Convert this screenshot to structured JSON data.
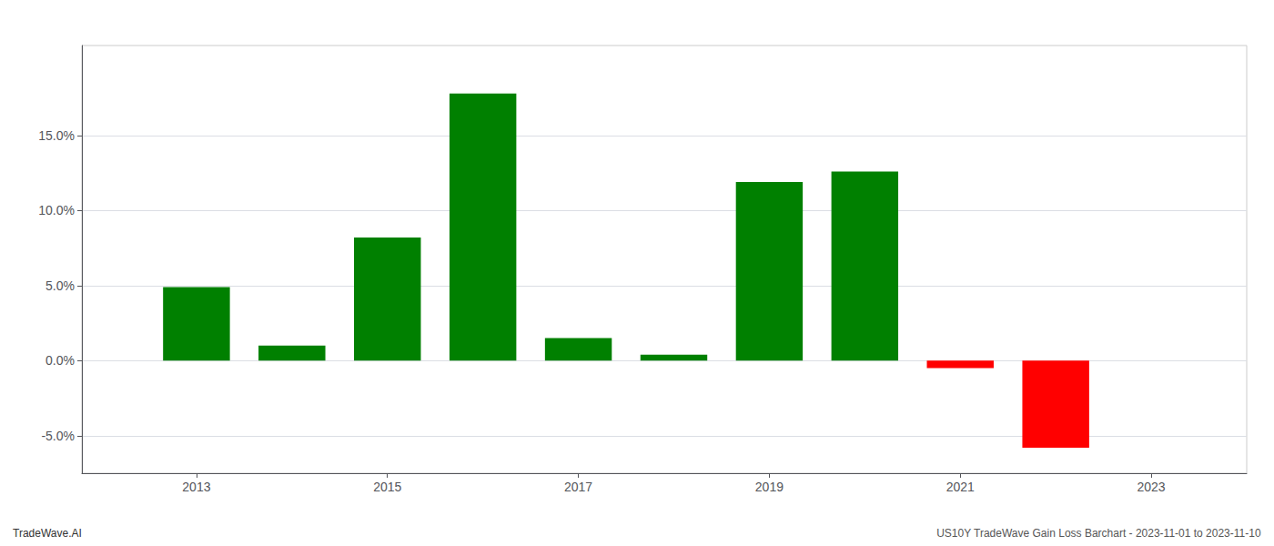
{
  "chart_data": {
    "type": "bar",
    "x": [
      2013,
      2014,
      2015,
      2016,
      2017,
      2018,
      2019,
      2020,
      2021,
      2022
    ],
    "values": [
      0.049,
      0.01,
      0.082,
      0.178,
      0.015,
      0.004,
      0.119,
      0.126,
      -0.005,
      -0.058
    ],
    "colors": [
      "#008000",
      "#008000",
      "#008000",
      "#008000",
      "#008000",
      "#008000",
      "#008000",
      "#008000",
      "#ff0000",
      "#ff0000"
    ],
    "xlim": [
      2011.8,
      2024.0
    ],
    "xticks": [
      2013,
      2015,
      2017,
      2019,
      2021,
      2023
    ],
    "ylim": [
      -0.075,
      0.21
    ],
    "yticks": [
      {
        "value": -0.05,
        "label": "-5.0%"
      },
      {
        "value": 0.0,
        "label": "0.0%"
      },
      {
        "value": 0.05,
        "label": "5.0%"
      },
      {
        "value": 0.1,
        "label": "10.0%"
      },
      {
        "value": 0.15,
        "label": "15.0%"
      }
    ],
    "grid": true,
    "annotations": [
      "TradeWave.AI",
      "US10Y TradeWave Gain Loss Barchart - 2023-11-01 to 2023-11-10"
    ]
  }
}
